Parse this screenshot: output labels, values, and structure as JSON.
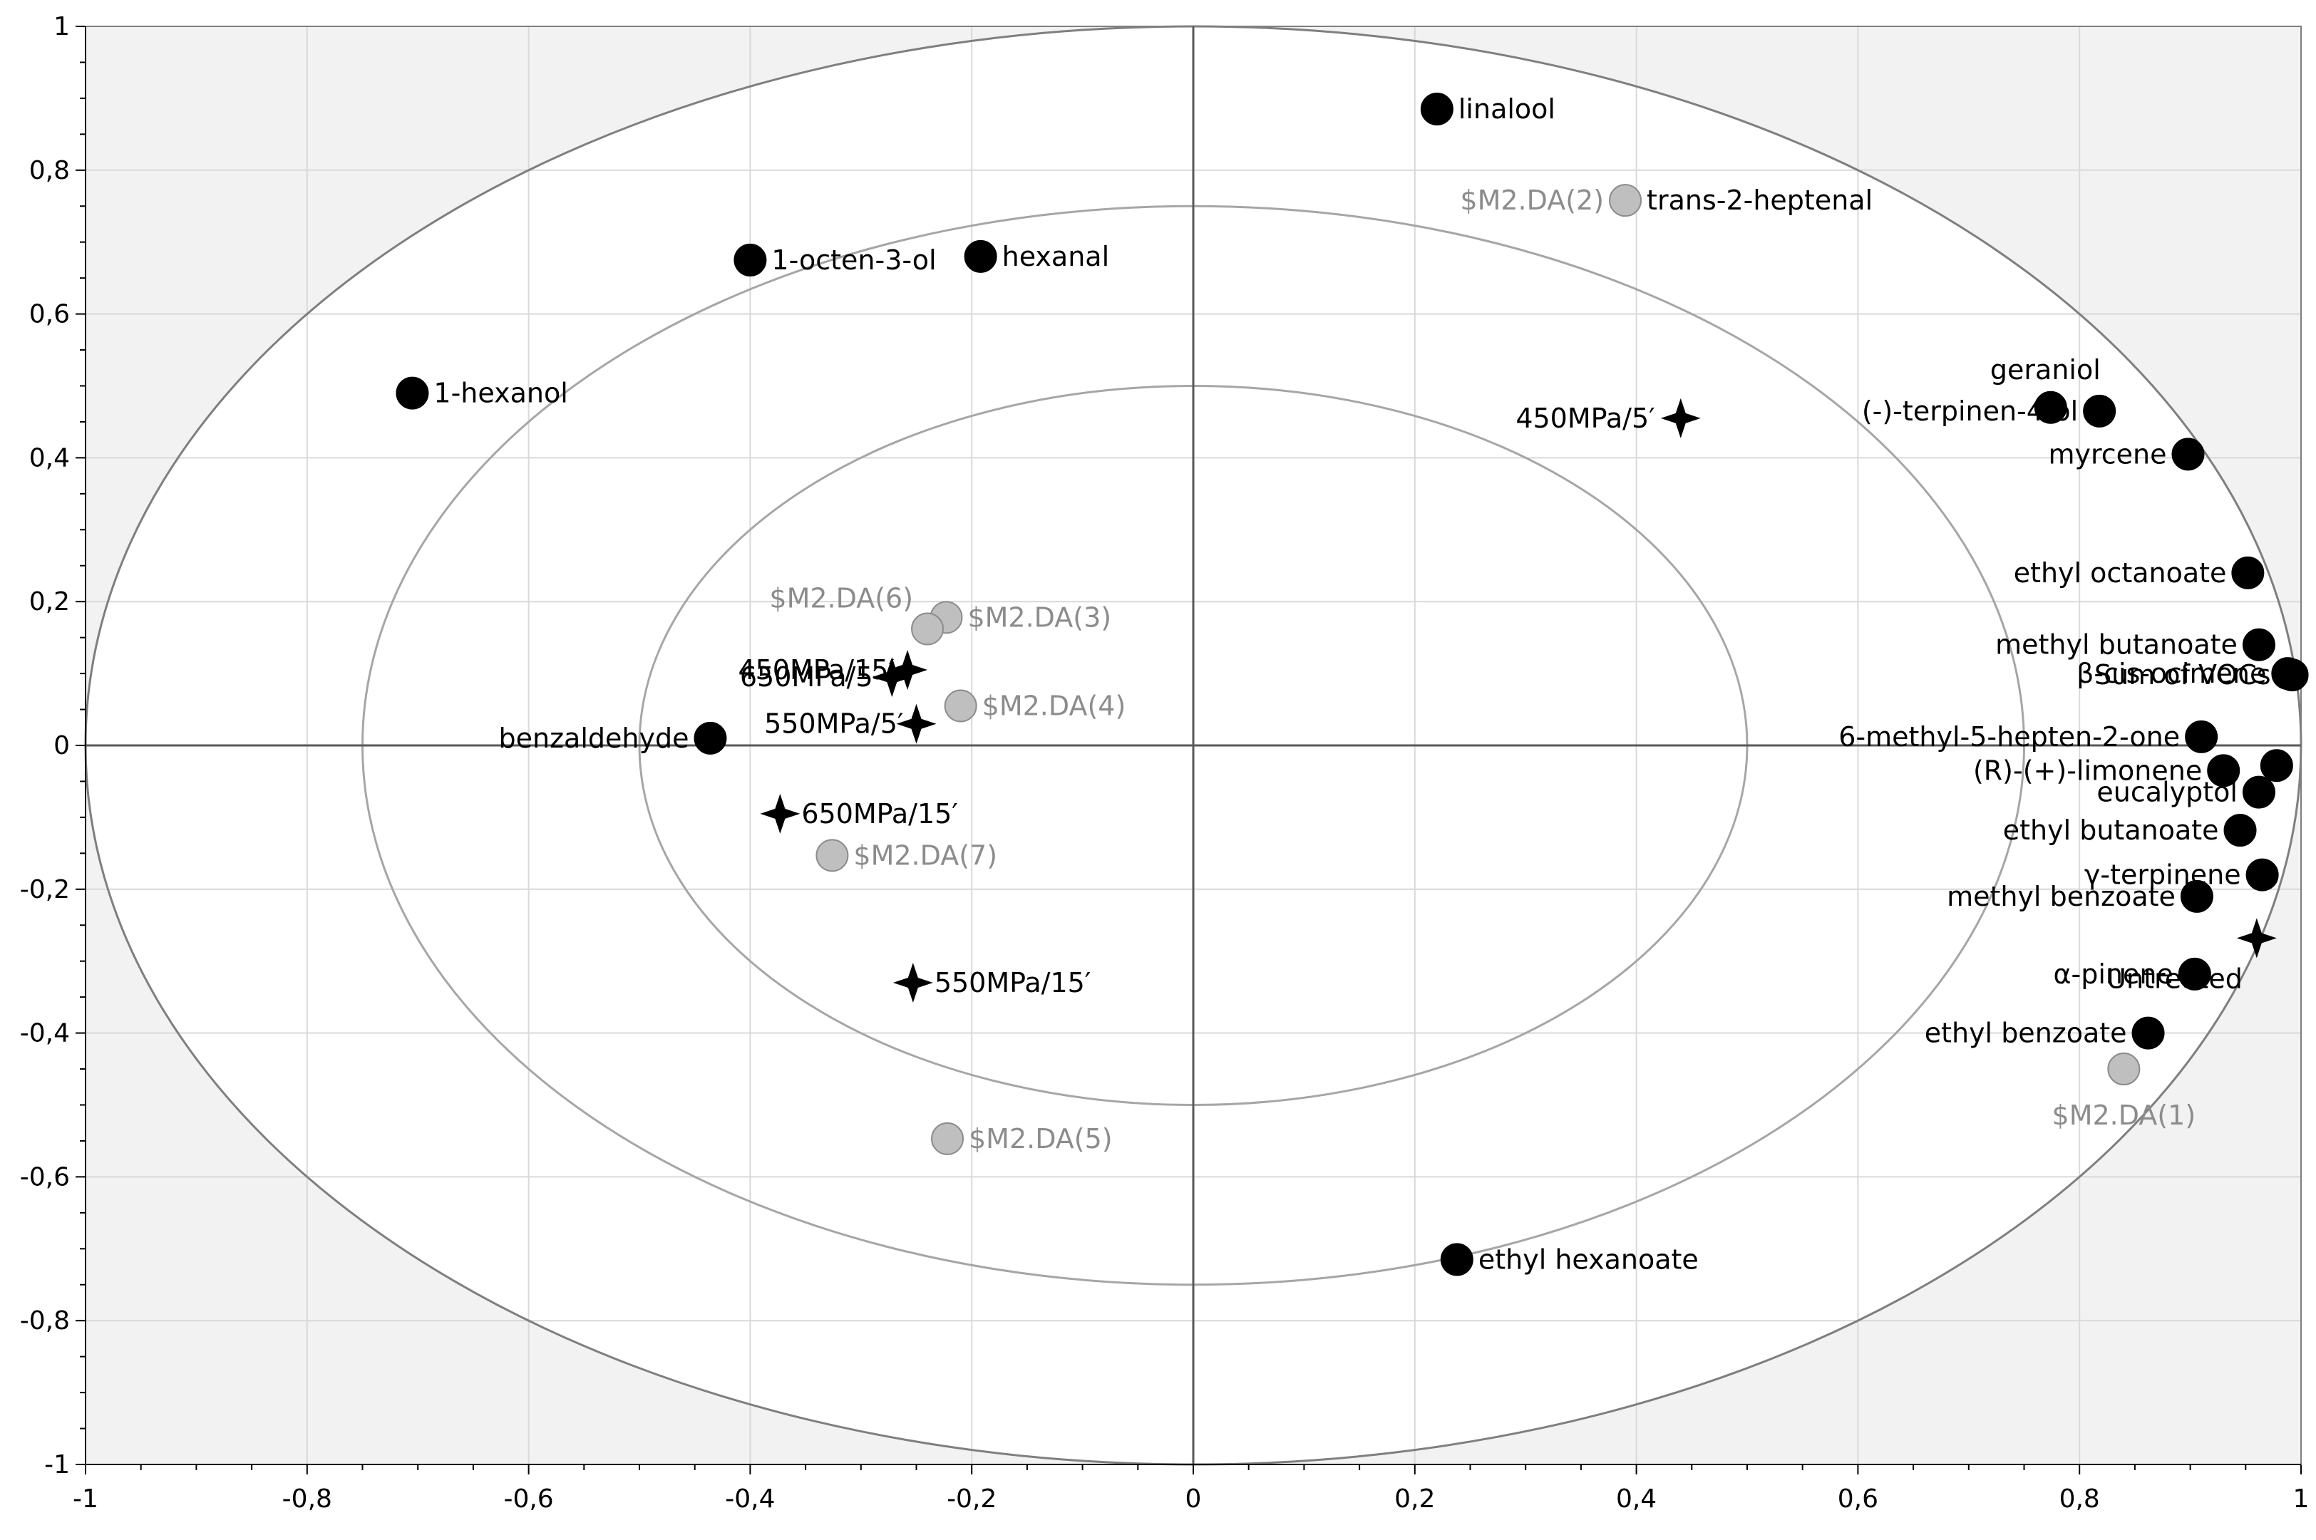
{
  "chart_data": {
    "type": "scatter",
    "title": "",
    "xlabel": "",
    "ylabel": "",
    "xlim": [
      -1,
      1
    ],
    "ylim": [
      -1,
      1
    ],
    "grid": true,
    "x_ticks": [
      "-1",
      "-0,8",
      "-0,6",
      "-0,4",
      "-0,2",
      "0",
      "0,2",
      "0,4",
      "0,6",
      "0,8",
      "1"
    ],
    "y_ticks": [
      "1",
      "0,8",
      "0,6",
      "0,4",
      "0,2",
      "0",
      "-0,2",
      "-0,4",
      "-0,6",
      "-0,8",
      "-1"
    ],
    "circles": [
      1,
      0.75,
      0.5
    ],
    "colors": {
      "variable": "#000000",
      "sample": "#000000",
      "dummy": "#bfbfbf",
      "dummy_text": "#8c8c8c",
      "outside": "#f2f2f2",
      "grid": "#d9d9d9",
      "circle": "#a6a6a6"
    },
    "series": [
      {
        "marker": "circle-black",
        "points": [
          {
            "x": 0.22,
            "y": 0.885,
            "label": "linalool"
          },
          {
            "x": -0.4,
            "y": 0.675,
            "label": "1-octen-3-ol"
          },
          {
            "x": -0.192,
            "y": 0.68,
            "label": "hexanal"
          },
          {
            "x": -0.705,
            "y": 0.49,
            "label": "1-hexanol"
          },
          {
            "x": 0.774,
            "y": 0.47,
            "label": "geraniol"
          },
          {
            "x": 0.818,
            "y": 0.465,
            "label": "(-)-terpinen-4-ol"
          },
          {
            "x": 0.898,
            "y": 0.405,
            "label": "myrcene"
          },
          {
            "x": 0.952,
            "y": 0.24,
            "label": "ethyl octanoate"
          },
          {
            "x": 0.962,
            "y": 0.14,
            "label": "methyl butanoate"
          },
          {
            "x": 0.988,
            "y": 0.1,
            "label": "β-cis-ocimene"
          },
          {
            "x": 0.992,
            "y": 0.098,
            "label": "Sum of VOCs"
          },
          {
            "x": 0.91,
            "y": 0.012,
            "label": "6-methyl-5-hepten-2-one"
          },
          {
            "x": 0.93,
            "y": -0.035,
            "label": "(R)-(+)-limonene"
          },
          {
            "x": 0.978,
            "y": -0.028,
            "label": ""
          },
          {
            "x": 0.962,
            "y": -0.065,
            "label": "eucalyptol"
          },
          {
            "x": 0.945,
            "y": -0.118,
            "label": "ethyl butanoate"
          },
          {
            "x": 0.965,
            "y": -0.18,
            "label": "γ-terpinene"
          },
          {
            "x": 0.906,
            "y": -0.21,
            "label": "methyl benzoate"
          },
          {
            "x": 0.904,
            "y": -0.318,
            "label": "α-pinene"
          },
          {
            "x": 0.862,
            "y": -0.4,
            "label": "ethyl benzoate"
          },
          {
            "x": -0.436,
            "y": 0.01,
            "label": "benzaldehyde"
          },
          {
            "x": 0.238,
            "y": -0.715,
            "label": "ethyl hexanoate"
          }
        ]
      },
      {
        "marker": "star-black",
        "points": [
          {
            "x": 0.44,
            "y": 0.455,
            "label": "450MPa/5′"
          },
          {
            "x": -0.258,
            "y": 0.105,
            "label": "450MPa/15′"
          },
          {
            "x": -0.272,
            "y": 0.095,
            "label": "650MPa/5′"
          },
          {
            "x": -0.25,
            "y": 0.03,
            "label": "550MPa/5′"
          },
          {
            "x": -0.373,
            "y": -0.095,
            "label": "650MPa/15′"
          },
          {
            "x": -0.253,
            "y": -0.33,
            "label": "550MPa/15′"
          },
          {
            "x": 0.96,
            "y": -0.268,
            "label": "Untreated"
          }
        ]
      },
      {
        "marker": "circle-grey",
        "points": [
          {
            "x": 0.39,
            "y": 0.758,
            "label": "$M2.DA(2)"
          },
          {
            "x": -0.223,
            "y": 0.178,
            "label": "$M2.DA(3)"
          },
          {
            "x": -0.24,
            "y": 0.162,
            "label": "$M2.DA(6)"
          },
          {
            "x": -0.21,
            "y": 0.055,
            "label": "$M2.DA(4)"
          },
          {
            "x": -0.326,
            "y": -0.153,
            "label": "$M2.DA(7)"
          },
          {
            "x": -0.222,
            "y": -0.547,
            "label": "$M2.DA(5)"
          },
          {
            "x": 0.84,
            "y": -0.45,
            "label": "$M2.DA(1)"
          }
        ]
      }
    ],
    "extra_labels": [
      {
        "text": "trans-2-heptenal",
        "anchor_x": 0.39,
        "anchor_y": 0.758
      }
    ]
  }
}
